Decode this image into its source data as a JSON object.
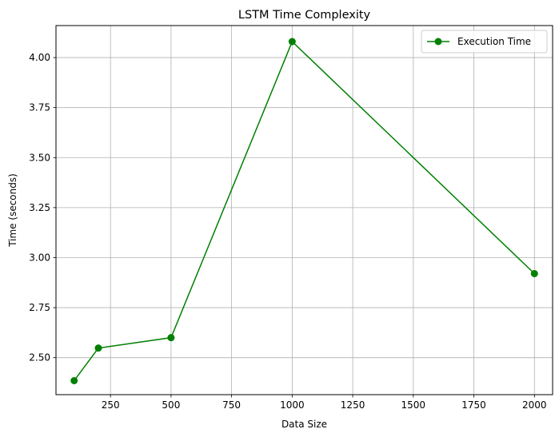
{
  "chart_data": {
    "type": "line",
    "title": "LSTM Time Complexity",
    "xlabel": "Data Size",
    "ylabel": "Time (seconds)",
    "xlim": [
      25,
      2075
    ],
    "ylim": [
      2.315,
      4.16
    ],
    "xticks": [
      250,
      500,
      750,
      1000,
      1250,
      1500,
      1750,
      2000
    ],
    "yticks": [
      2.5,
      2.75,
      3.0,
      3.25,
      3.5,
      3.75,
      4.0
    ],
    "xtick_labels": [
      "250",
      "500",
      "750",
      "1000",
      "1250",
      "1500",
      "1750",
      "2000"
    ],
    "ytick_labels": [
      "2.50",
      "2.75",
      "3.00",
      "3.25",
      "3.50",
      "3.75",
      "4.00"
    ],
    "grid": true,
    "legend_position": "top-right",
    "series": [
      {
        "name": "Execution Time",
        "color": "#008000",
        "marker": "circle",
        "x": [
          100,
          200,
          500,
          1000,
          2000
        ],
        "y": [
          2.385,
          2.548,
          2.6,
          4.08,
          2.92
        ]
      }
    ]
  }
}
